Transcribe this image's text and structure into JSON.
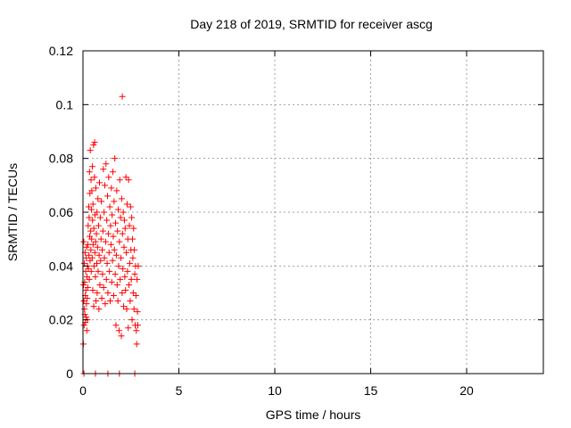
{
  "chart_data": {
    "type": "scatter",
    "title": "Day 218 of 2019, SRMTID for receiver ascg",
    "xlabel": "GPS time / hours",
    "ylabel": "SRMTID / TECUs",
    "xlim": [
      0,
      24
    ],
    "ylim": [
      0,
      0.12
    ],
    "xticks": [
      0,
      5,
      10,
      15,
      20
    ],
    "xtick_labels": [
      "0",
      "5",
      "10",
      "15",
      "20"
    ],
    "yticks": [
      0,
      0.02,
      0.04,
      0.06,
      0.08,
      0.1,
      0.12
    ],
    "ytick_labels": [
      "0",
      "0.02",
      "0.04",
      "0.06",
      "0.08",
      "0.1",
      "0.12"
    ],
    "grid": true,
    "marker": "plus",
    "color": "#ff0000",
    "series": [
      {
        "name": "SRMTID",
        "points": [
          [
            0.02,
            0.011
          ],
          [
            0.03,
            0.033
          ],
          [
            0.04,
            0.049
          ],
          [
            0.05,
            0.027
          ],
          [
            0.06,
            0.018
          ],
          [
            0.07,
            0.041
          ],
          [
            0.08,
            0.024
          ],
          [
            0.09,
            0.034
          ],
          [
            0.1,
            0.022
          ],
          [
            0.11,
            0.045
          ],
          [
            0.12,
            0.029
          ],
          [
            0.13,
            0.019
          ],
          [
            0.14,
            0.038
          ],
          [
            0.15,
            0.031
          ],
          [
            0.16,
            0.021
          ],
          [
            0.17,
            0.043
          ],
          [
            0.18,
            0.026
          ],
          [
            0.19,
            0.047
          ],
          [
            0.2,
            0.016
          ],
          [
            0.21,
            0.036
          ],
          [
            0.22,
            0.028
          ],
          [
            0.23,
            0.02
          ],
          [
            0.24,
            0.04
          ],
          [
            0.25,
            0.032
          ],
          [
            0.26,
            0.048
          ],
          [
            0.27,
            0.055
          ],
          [
            0.28,
            0.039
          ],
          [
            0.3,
            0.062
          ],
          [
            0.31,
            0.044
          ],
          [
            0.32,
            0.058
          ],
          [
            0.33,
            0.035
          ],
          [
            0.34,
            0.075
          ],
          [
            0.35,
            0.051
          ],
          [
            0.36,
            0.067
          ],
          [
            0.37,
            0.042
          ],
          [
            0.38,
            0.083
          ],
          [
            0.4,
            0.053
          ],
          [
            0.41,
            0.046
          ],
          [
            0.42,
            0.072
          ],
          [
            0.43,
            0.038
          ],
          [
            0.44,
            0.061
          ],
          [
            0.45,
            0.05
          ],
          [
            0.46,
            0.068
          ],
          [
            0.48,
            0.043
          ],
          [
            0.49,
            0.077
          ],
          [
            0.5,
            0.057
          ],
          [
            0.51,
            0.031
          ],
          [
            0.52,
            0.063
          ],
          [
            0.53,
            0.048
          ],
          [
            0.55,
            0.085
          ],
          [
            0.56,
            0.025
          ],
          [
            0.57,
            0.054
          ],
          [
            0.58,
            0.04
          ],
          [
            0.6,
            0.073
          ],
          [
            0.61,
            0.086
          ],
          [
            0.62,
            0.045
          ],
          [
            0.63,
            0.059
          ],
          [
            0.65,
            0.036
          ],
          [
            0.66,
            0.049
          ],
          [
            0.67,
            0.069
          ],
          [
            0.68,
            0.027
          ],
          [
            0.7,
            0.052
          ],
          [
            0.72,
            0.041
          ],
          [
            0.73,
            0.06
          ],
          [
            0.74,
            0.03
          ],
          [
            0.76,
            0.047
          ],
          [
            0.78,
            0.065
          ],
          [
            0.79,
            0.038
          ],
          [
            0.81,
            0.055
          ],
          [
            0.83,
            0.024
          ],
          [
            0.84,
            0.044
          ],
          [
            0.86,
            0.071
          ],
          [
            0.88,
            0.033
          ],
          [
            0.9,
            0.058
          ],
          [
            0.92,
            0.042
          ],
          [
            0.94,
            0.05
          ],
          [
            0.96,
            0.064
          ],
          [
            0.98,
            0.028
          ],
          [
            1.0,
            0.046
          ],
          [
            1.02,
            0.037
          ],
          [
            1.04,
            0.053
          ],
          [
            1.06,
            0.076
          ],
          [
            1.08,
            0.032
          ],
          [
            1.1,
            0.06
          ],
          [
            1.12,
            0.043
          ],
          [
            1.14,
            0.07
          ],
          [
            1.16,
            0.026
          ],
          [
            1.18,
            0.049
          ],
          [
            1.2,
            0.078
          ],
          [
            1.22,
            0.035
          ],
          [
            1.24,
            0.057
          ],
          [
            1.26,
            0.041
          ],
          [
            1.28,
            0.066
          ],
          [
            1.3,
            0.03
          ],
          [
            1.32,
            0.052
          ],
          [
            1.34,
            0.073
          ],
          [
            1.36,
            0.045
          ],
          [
            1.38,
            0.038
          ],
          [
            1.4,
            0.062
          ],
          [
            1.42,
            0.027
          ],
          [
            1.44,
            0.055
          ],
          [
            1.46,
            0.048
          ],
          [
            1.48,
            0.069
          ],
          [
            1.5,
            0.034
          ],
          [
            1.52,
            0.059
          ],
          [
            1.54,
            0.042
          ],
          [
            1.56,
            0.075
          ],
          [
            1.58,
            0.051
          ],
          [
            1.6,
            0.029
          ],
          [
            1.62,
            0.064
          ],
          [
            1.64,
            0.046
          ],
          [
            1.66,
            0.08
          ],
          [
            1.68,
            0.037
          ],
          [
            1.7,
            0.056
          ],
          [
            1.72,
            0.018
          ],
          [
            1.74,
            0.044
          ],
          [
            1.76,
            0.068
          ],
          [
            1.78,
            0.033
          ],
          [
            1.8,
            0.053
          ],
          [
            1.82,
            0.027
          ],
          [
            1.84,
            0.061
          ],
          [
            1.86,
            0.04
          ],
          [
            1.88,
            0.016
          ],
          [
            1.9,
            0.049
          ],
          [
            1.92,
            0.072
          ],
          [
            1.94,
            0.035
          ],
          [
            1.96,
            0.058
          ],
          [
            1.98,
            0.043
          ],
          [
            2.0,
            0.014
          ],
          [
            2.02,
            0.065
          ],
          [
            2.04,
            0.03
          ],
          [
            2.05,
            0.103
          ],
          [
            2.06,
            0.052
          ],
          [
            2.08,
            0.039
          ],
          [
            2.1,
            0.06
          ],
          [
            2.12,
            0.025
          ],
          [
            2.14,
            0.047
          ],
          [
            2.16,
            0.057
          ],
          [
            2.18,
            0.036
          ],
          [
            2.2,
            0.054
          ],
          [
            2.22,
            0.031
          ],
          [
            2.24,
            0.073
          ],
          [
            2.26,
            0.045
          ],
          [
            2.28,
            0.024
          ],
          [
            2.3,
            0.063
          ],
          [
            2.32,
            0.038
          ],
          [
            2.34,
            0.05
          ],
          [
            2.36,
            0.017
          ],
          [
            2.38,
            0.072
          ],
          [
            2.4,
            0.033
          ],
          [
            2.42,
            0.055
          ],
          [
            2.44,
            0.041
          ],
          [
            2.46,
            0.027
          ],
          [
            2.48,
            0.062
          ],
          [
            2.5,
            0.046
          ],
          [
            2.52,
            0.035
          ],
          [
            2.54,
            0.058
          ],
          [
            2.56,
            0.02
          ],
          [
            2.58,
            0.05
          ],
          [
            2.6,
            0.043
          ],
          [
            2.62,
            0.03
          ],
          [
            2.64,
            0.054
          ],
          [
            2.66,
            0.024
          ],
          [
            2.68,
            0.046
          ],
          [
            2.7,
            0.037
          ],
          [
            2.72,
            0.018
          ],
          [
            2.74,
            0.04
          ],
          [
            2.76,
            0.029
          ],
          [
            2.78,
            0.016
          ],
          [
            2.8,
            0.011
          ],
          [
            2.82,
            0.035
          ],
          [
            2.84,
            0.023
          ],
          [
            2.86,
            0.018
          ],
          [
            2.88,
            0.04
          ],
          [
            0.05,
            0.0
          ],
          [
            0.65,
            0.0
          ],
          [
            1.3,
            0.0
          ],
          [
            1.9,
            0.0
          ],
          [
            2.7,
            0.0
          ]
        ]
      }
    ]
  }
}
